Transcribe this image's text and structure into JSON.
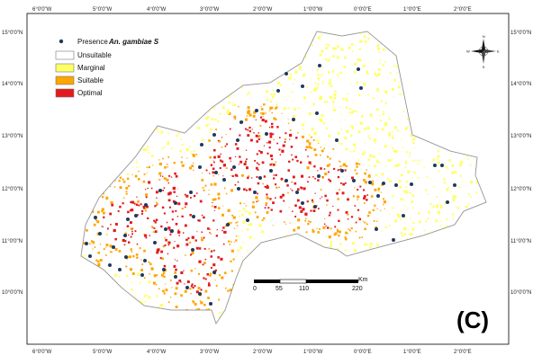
{
  "map": {
    "panel_label": "(C)",
    "legend": {
      "presence_label": "Presence",
      "presence_species": "An. gambiae S",
      "classes": [
        {
          "label": "Unsuitable",
          "color": "#ffffff"
        },
        {
          "label": "Marginal",
          "color": "#ffff66"
        },
        {
          "label": "Suitable",
          "color": "#ffa500"
        },
        {
          "label": "Optimal",
          "color": "#e31a1c"
        }
      ]
    },
    "top_ticks": [
      "6°0'0\"W",
      "5°0'0\"W",
      "4°0'0\"W",
      "3°0'0\"W",
      "2°0'0\"W",
      "1°0'0\"W",
      "0°0'0\"E",
      "1°0'0\"E",
      "2°0'0\"E"
    ],
    "bottom_ticks": [
      "6°0'0\"W",
      "5°0'0\"W",
      "4°0'0\"W",
      "3°0'0\"W",
      "2°0'0\"W",
      "1°0'0\"W",
      "0°0'0\"E",
      "1°0'0\"E",
      "2°0'0\"E"
    ],
    "left_ticks": [
      "15°0'0\"N",
      "14°0'0\"N",
      "13°0'0\"N",
      "12°0'0\"N",
      "11°0'0\"N",
      "10°0'0\"N"
    ],
    "right_ticks": [
      "15°0'0\"N",
      "14°0'0\"N",
      "13°0'0\"N",
      "12°0'0\"N",
      "11°0'0\"N",
      "10°0'0\"N"
    ],
    "scale_bar": {
      "labels": [
        "0",
        "55",
        "110",
        "220"
      ],
      "unit": "Km"
    },
    "north_arrow": {
      "letters": {
        "n": "N",
        "s": "S",
        "e": "E",
        "w": "W"
      }
    },
    "colors": {
      "marginal": "#ffff66",
      "suitable": "#ffa500",
      "optimal": "#e31a1c",
      "presence": "#1f3a5f",
      "border": "#777777"
    }
  }
}
